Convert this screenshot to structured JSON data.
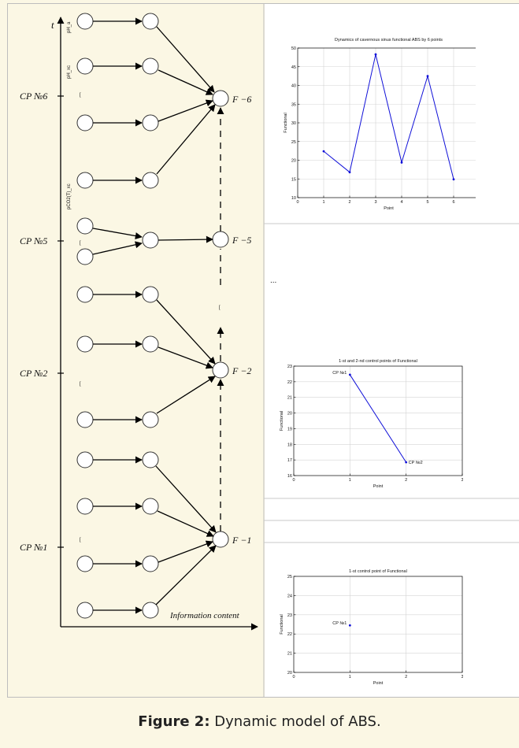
{
  "diagram": {
    "t_label": "t",
    "axis_label": "Information content",
    "cp_labels": [
      "CP №6",
      "CP №5",
      "CP №2",
      "CP №1"
    ],
    "f_labels": [
      "F −6",
      "F −5",
      "F −2",
      "F −1"
    ],
    "param_labels": [
      "pH_a",
      "pH_xc",
      "pCO2(T)_xc"
    ],
    "ellipsis": "...",
    "bracket": "["
  },
  "caption": {
    "label": "Figure 2:",
    "text": "Dynamic model of ABS."
  },
  "chart_data": [
    {
      "type": "line",
      "title": "Dynamics of cavernous sinus functional ABS by 6 points",
      "xlabel": "Point",
      "ylabel": "Functional",
      "x": [
        1,
        2,
        3,
        4,
        5,
        6
      ],
      "y": [
        22.4,
        16.8,
        48.3,
        19.4,
        42.5,
        14.9
      ],
      "xlim": [
        0,
        7
      ],
      "ylim": [
        10,
        50
      ],
      "xticks": [
        0,
        1,
        2,
        3,
        4,
        5,
        6,
        7
      ],
      "yticks": [
        10,
        15,
        20,
        25,
        30,
        35,
        40,
        45,
        50
      ],
      "grid": true
    },
    {
      "type": "line",
      "title": "1-st and 2-nd control points of Functional",
      "xlabel": "Point",
      "ylabel": "Functional",
      "x": [
        1,
        2
      ],
      "y": [
        22.45,
        16.85
      ],
      "point_labels": [
        "CP №1",
        "CP №2"
      ],
      "xlim": [
        0,
        3
      ],
      "ylim": [
        16,
        23
      ],
      "xticks": [
        0,
        1,
        2,
        3
      ],
      "yticks": [
        16,
        17,
        18,
        19,
        20,
        21,
        22,
        23
      ],
      "grid": true
    },
    {
      "type": "scatter",
      "title": "1-st control point of Functional",
      "xlabel": "Point",
      "ylabel": "Functional",
      "x": [
        1
      ],
      "y": [
        22.45
      ],
      "point_labels": [
        "CP №1"
      ],
      "xlim": [
        0,
        3
      ],
      "ylim": [
        20,
        25
      ],
      "xticks": [
        0,
        1,
        2,
        3
      ],
      "yticks": [
        20,
        21,
        22,
        23,
        24,
        25
      ],
      "grid": true
    }
  ]
}
